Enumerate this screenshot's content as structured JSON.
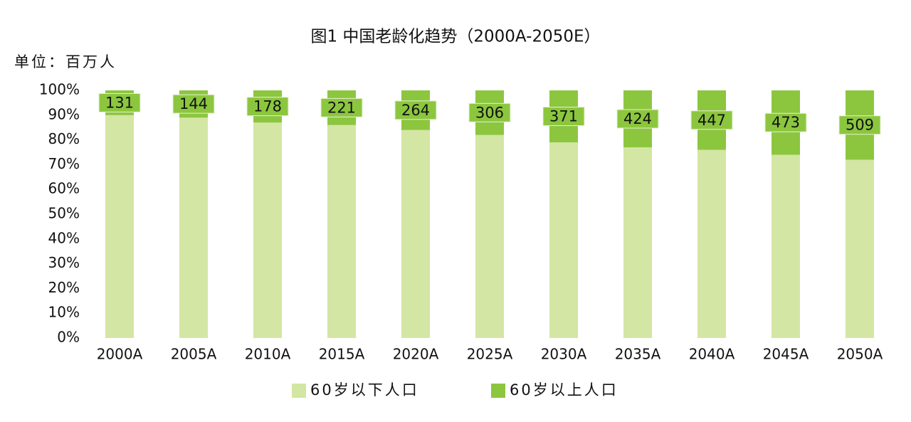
{
  "chart_data": {
    "type": "stacked_bar",
    "title": "图1 中国老龄化趋势（2000A-2050E）",
    "unit_label": "单位：百万人",
    "categories": [
      "2000A",
      "2005A",
      "2010A",
      "2015A",
      "2020A",
      "2025A",
      "2030A",
      "2035A",
      "2040A",
      "2045A",
      "2050A"
    ],
    "series": [
      {
        "name": "60岁以下人口",
        "color": "#d3e6a3",
        "values": [
          90,
          89,
          87,
          86,
          84,
          82,
          79,
          77,
          76,
          74,
          72
        ]
      },
      {
        "name": "60岁以上人口",
        "color": "#8cc63f",
        "values": [
          10,
          11,
          13,
          14,
          16,
          18,
          21,
          23,
          24,
          26,
          28
        ],
        "counts": [
          131,
          144,
          178,
          221,
          264,
          306,
          371,
          424,
          447,
          473,
          509
        ]
      }
    ],
    "ylim": [
      0,
      100
    ],
    "yticks": [
      {
        "value": 0,
        "label": "0%"
      },
      {
        "value": 10,
        "label": "10%"
      },
      {
        "value": 20,
        "label": "20%"
      },
      {
        "value": 30,
        "label": "30%"
      },
      {
        "value": 40,
        "label": "40%"
      },
      {
        "value": 50,
        "label": "50%"
      },
      {
        "value": 60,
        "label": "60%"
      },
      {
        "value": 70,
        "label": "70%"
      },
      {
        "value": 80,
        "label": "80%"
      },
      {
        "value": 90,
        "label": "90%"
      },
      {
        "value": 100,
        "label": "100%"
      }
    ],
    "grid": false,
    "legend": "bottom"
  }
}
